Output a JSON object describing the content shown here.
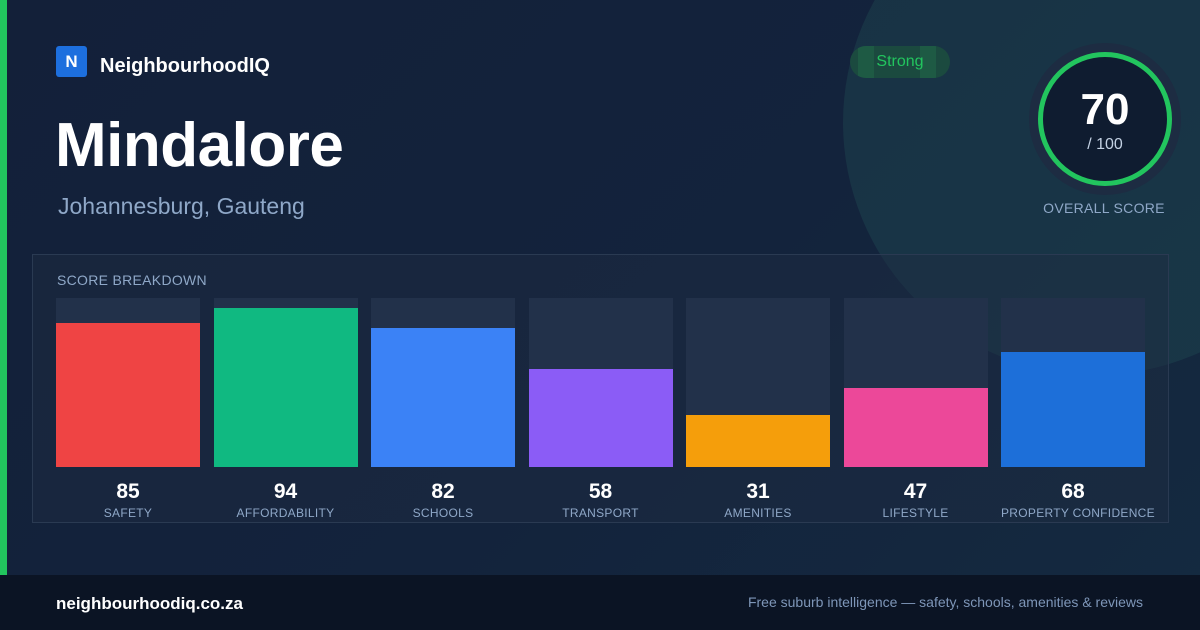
{
  "brand": {
    "logo_letter": "N",
    "name": "NeighbourhoodIQ"
  },
  "suburb": {
    "name": "Mindalore",
    "location": "Johannesburg, Gauteng"
  },
  "badge": {
    "label": "Strong"
  },
  "overall": {
    "score": "70",
    "max": "/ 100",
    "label": "OVERALL SCORE"
  },
  "colors": {
    "accent": "#22c55e",
    "brand": "#1d6fde"
  },
  "breakdown": {
    "title": "SCORE BREAKDOWN",
    "items": [
      {
        "value": "85",
        "label": "SAFETY",
        "score": 85,
        "color": "#ef4444"
      },
      {
        "value": "94",
        "label": "AFFORDABILITY",
        "score": 94,
        "color": "#10b981"
      },
      {
        "value": "82",
        "label": "SCHOOLS",
        "score": 82,
        "color": "#3b82f6"
      },
      {
        "value": "58",
        "label": "TRANSPORT",
        "score": 58,
        "color": "#8b5cf6"
      },
      {
        "value": "31",
        "label": "AMENITIES",
        "score": 31,
        "color": "#f59e0b"
      },
      {
        "value": "47",
        "label": "LIFESTYLE",
        "score": 47,
        "color": "#ec4899"
      },
      {
        "value": "68",
        "label": "PROPERTY CONFIDENCE",
        "score": 68,
        "color": "#1d6fd9"
      }
    ]
  },
  "footer": {
    "url": "neighbourhoodiq.co.za",
    "tagline": "Free suburb intelligence — safety, schools, amenities & reviews"
  }
}
